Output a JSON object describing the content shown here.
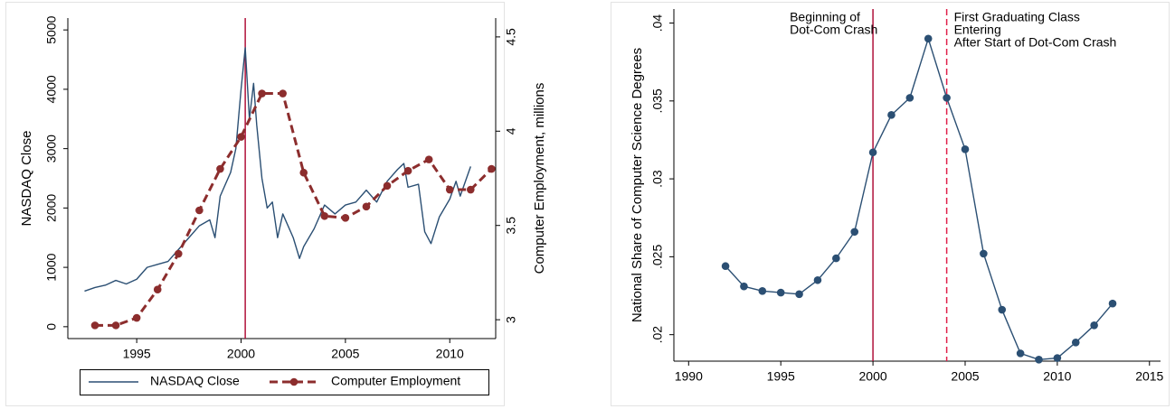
{
  "chart_data": [
    {
      "type": "line",
      "y_label": "NASDAQ Close",
      "y2_label": "Computer Employment, millions",
      "xlim": [
        1991.7,
        2012.2
      ],
      "xticks": [
        1995,
        2000,
        2005,
        2010
      ],
      "ylim": [
        -200,
        5200
      ],
      "yticks": [
        0,
        1000,
        2000,
        3000,
        4000,
        5000
      ],
      "y2lim": [
        2.9,
        4.6
      ],
      "y2ticks": [
        3,
        3.5,
        4,
        4.5
      ],
      "legend": "bottom",
      "vlines": [
        {
          "x": 2000.2,
          "color": "#b0113a",
          "style": "solid"
        }
      ],
      "series": [
        {
          "name": "NASDAQ Close",
          "color": "#2b4f73",
          "axis": "y",
          "x": [
            1992.5,
            1993,
            1993.5,
            1994,
            1994.5,
            1995,
            1995.5,
            1996,
            1996.5,
            1997,
            1997.5,
            1998,
            1998.5,
            1998.75,
            1999,
            1999.5,
            1999.75,
            2000,
            2000.2,
            2000.4,
            2000.6,
            2000.75,
            2001,
            2001.25,
            2001.5,
            2001.75,
            2002,
            2002.5,
            2002.8,
            2003,
            2003.5,
            2004,
            2004.5,
            2005,
            2005.5,
            2006,
            2006.5,
            2007,
            2007.5,
            2007.8,
            2008,
            2008.5,
            2008.8,
            2009.1,
            2009.5,
            2010,
            2010.3,
            2010.5,
            2010.8,
            2011
          ],
          "values": [
            600,
            660,
            700,
            780,
            720,
            800,
            1000,
            1050,
            1100,
            1300,
            1500,
            1700,
            1800,
            1500,
            2200,
            2600,
            3000,
            4000,
            4700,
            3500,
            4100,
            3400,
            2500,
            2000,
            2100,
            1500,
            1900,
            1500,
            1150,
            1350,
            1650,
            2050,
            1900,
            2050,
            2100,
            2300,
            2100,
            2450,
            2650,
            2750,
            2350,
            2400,
            1600,
            1400,
            1850,
            2150,
            2450,
            2200,
            2500,
            2700
          ]
        },
        {
          "name": "Computer Employment",
          "color": "#8c2d2d",
          "axis": "y2",
          "dashed": true,
          "markers": true,
          "x": [
            1993,
            1994,
            1995,
            1996,
            1997,
            1998,
            1999,
            2000,
            2001,
            2002,
            2003,
            2004,
            2005,
            2006,
            2007,
            2008,
            2009,
            2010,
            2011,
            2012
          ],
          "values": [
            2.97,
            2.97,
            3.01,
            3.16,
            3.35,
            3.58,
            3.8,
            3.97,
            4.2,
            4.2,
            3.78,
            3.55,
            3.54,
            3.6,
            3.71,
            3.79,
            3.85,
            3.69,
            3.69,
            3.8
          ]
        }
      ]
    },
    {
      "type": "line",
      "y_label": "National Share of Computer Science Degrees",
      "xlim": [
        1989.2,
        2015.6
      ],
      "xticks": [
        1990,
        1995,
        2000,
        2005,
        2010,
        2015
      ],
      "ylim": [
        0.0183,
        0.0409
      ],
      "yticks": [
        {
          "value": 0.02,
          "label": ".02"
        },
        {
          "value": 0.025,
          "label": ".025"
        },
        {
          "value": 0.03,
          "label": ".03"
        },
        {
          "value": 0.035,
          "label": ".035"
        },
        {
          "value": 0.04,
          "label": ".04"
        }
      ],
      "vlines": [
        {
          "x": 2000,
          "color": "#b0113a",
          "style": "solid",
          "label_side": "left",
          "label": [
            "Beginning of",
            "Dot-Com Crash"
          ]
        },
        {
          "x": 2004,
          "color": "#e0204a",
          "style": "dashed",
          "label_side": "right",
          "label": [
            "First Graduating Class",
            "Entering",
            "After Start of Dot-Com Crash"
          ]
        }
      ],
      "series": [
        {
          "color": "#2b4f73",
          "axis": "y",
          "markers": true,
          "x": [
            1992,
            1993,
            1994,
            1995,
            1996,
            1997,
            1998,
            1999,
            2000,
            2001,
            2002,
            2003,
            2004,
            2005,
            2006,
            2007,
            2008,
            2009,
            2010,
            2011,
            2012,
            2013
          ],
          "values": [
            0.0244,
            0.0231,
            0.0228,
            0.0227,
            0.0226,
            0.0235,
            0.0249,
            0.0266,
            0.0317,
            0.0341,
            0.0352,
            0.039,
            0.0352,
            0.0319,
            0.0252,
            0.0216,
            0.0188,
            0.0184,
            0.0185,
            0.0195,
            0.0206,
            0.022
          ]
        }
      ]
    }
  ]
}
